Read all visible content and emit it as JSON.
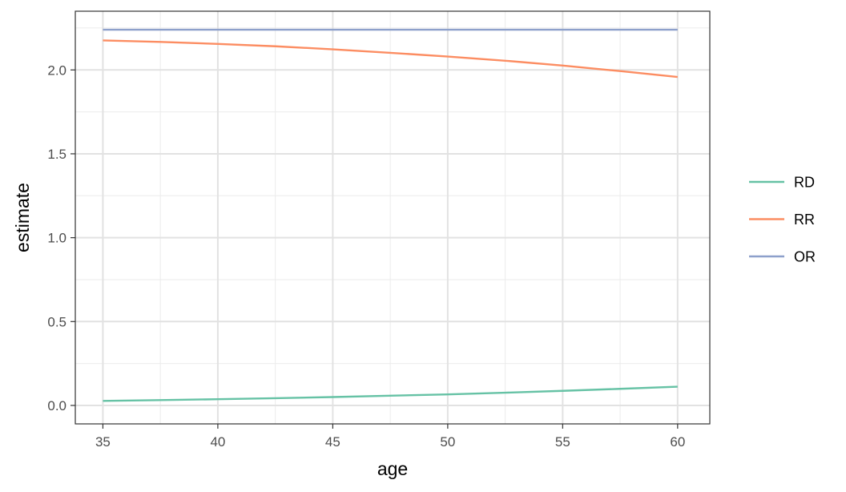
{
  "chart_data": {
    "type": "line",
    "xlabel": "age",
    "ylabel": "estimate",
    "xlim": [
      33.8,
      61.4
    ],
    "ylim": [
      -0.11,
      2.35
    ],
    "x_ticks": [
      35,
      40,
      45,
      50,
      55,
      60
    ],
    "x_tick_labels": [
      "35",
      "40",
      "45",
      "50",
      "55",
      "60"
    ],
    "y_ticks": [
      0.0,
      0.5,
      1.0,
      1.5,
      2.0
    ],
    "y_tick_labels": [
      "0.0",
      "0.5",
      "1.0",
      "1.5",
      "2.0"
    ],
    "grid": true,
    "legend_position": "right",
    "x": [
      35,
      37.5,
      40,
      42.5,
      45,
      47.5,
      50,
      52.5,
      55,
      57.5,
      60
    ],
    "series": [
      {
        "name": "RD",
        "color": "#66c2a5",
        "values": [
          0.027,
          0.032,
          0.037,
          0.043,
          0.05,
          0.058,
          0.066,
          0.076,
          0.087,
          0.099,
          0.112
        ]
      },
      {
        "name": "RR",
        "color": "#fc8d62",
        "values": [
          2.176,
          2.167,
          2.155,
          2.141,
          2.123,
          2.102,
          2.08,
          2.055,
          2.026,
          1.993,
          1.958
        ]
      },
      {
        "name": "OR",
        "color": "#8da0cb",
        "values": [
          2.24,
          2.24,
          2.24,
          2.24,
          2.24,
          2.24,
          2.24,
          2.24,
          2.24,
          2.24,
          2.24
        ]
      }
    ]
  }
}
